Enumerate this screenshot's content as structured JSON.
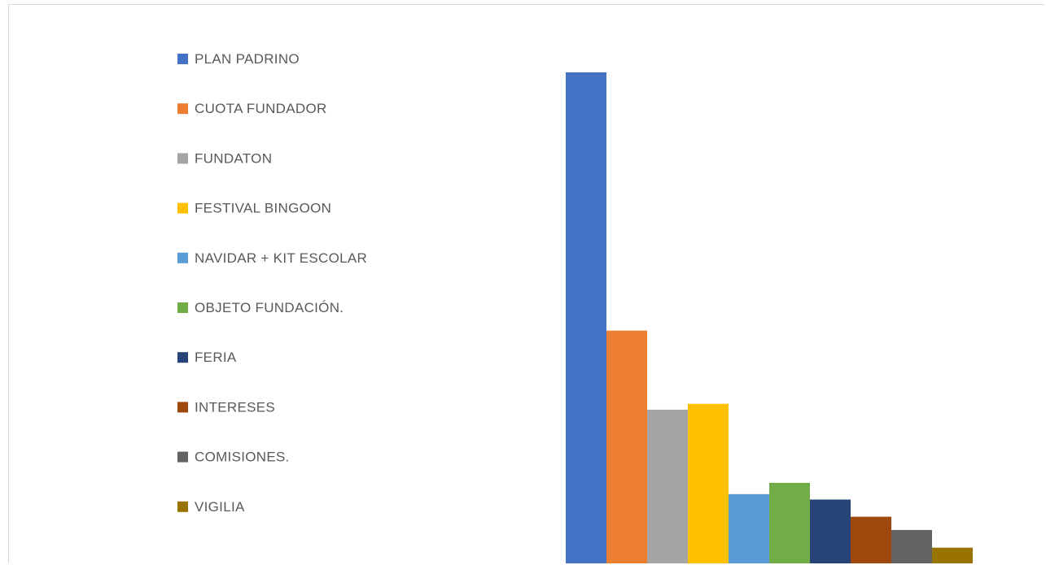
{
  "chart_data": {
    "type": "bar",
    "title": "",
    "xlabel": "",
    "ylabel": "",
    "legend_position": "left",
    "grid": false,
    "ylim": [
      0,
      1000
    ],
    "series": [
      {
        "name": "PLAN PADRINO",
        "value": 1000,
        "color": "#4472C4"
      },
      {
        "name": "CUOTA FUNDADOR",
        "value": 474,
        "color": "#ED7D31"
      },
      {
        "name": "FUNDATON",
        "value": 313,
        "color": "#A5A5A5"
      },
      {
        "name": "FESTIVAL BINGOON",
        "value": 325,
        "color": "#FFC000"
      },
      {
        "name": "NAVIDAR + KIT ESCOLAR",
        "value": 141,
        "color": "#5B9BD5"
      },
      {
        "name": "OBJETO FUNDACIÓN.",
        "value": 164,
        "color": "#70AD47"
      },
      {
        "name": "FERIA",
        "value": 130,
        "color": "#264478"
      },
      {
        "name": "INTERESES",
        "value": 95,
        "color": "#9E480E"
      },
      {
        "name": "COMISIONES.",
        "value": 68,
        "color": "#636363"
      },
      {
        "name": "VIGILIA",
        "value": 32,
        "color": "#997300"
      }
    ]
  }
}
